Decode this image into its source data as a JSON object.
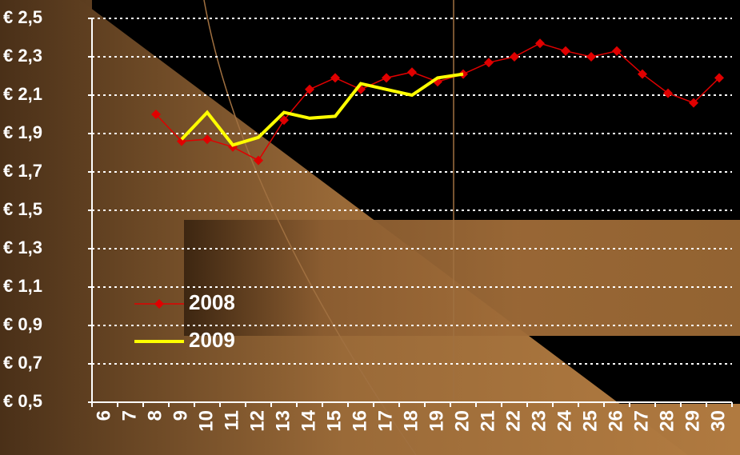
{
  "chart_data": {
    "type": "line",
    "categories": [
      "6",
      "7",
      "8",
      "9",
      "10",
      "11",
      "12",
      "13",
      "14",
      "15",
      "16",
      "17",
      "18",
      "19",
      "20",
      "21",
      "22",
      "23",
      "24",
      "25",
      "26",
      "27",
      "28",
      "29",
      "30"
    ],
    "series": [
      {
        "name": "2008",
        "color": "#e00000",
        "marker": "diamond",
        "values": [
          null,
          null,
          2.0,
          1.86,
          1.87,
          1.83,
          1.76,
          1.97,
          2.13,
          2.19,
          2.13,
          2.19,
          2.22,
          2.17,
          2.21,
          2.27,
          2.3,
          2.37,
          2.33,
          2.3,
          2.33,
          2.21,
          2.11,
          2.06,
          2.19
        ]
      },
      {
        "name": "2009",
        "color": "#ffff00",
        "values": [
          null,
          null,
          null,
          1.87,
          2.01,
          1.84,
          1.88,
          2.01,
          1.98,
          1.99,
          2.16,
          2.13,
          2.1,
          2.19,
          2.21,
          null,
          null,
          null,
          null,
          null,
          null,
          null,
          null,
          null,
          null
        ]
      }
    ],
    "ylim": [
      0.5,
      2.5
    ],
    "yticks": [
      {
        "value": 0.5,
        "label": "€ 0,5"
      },
      {
        "value": 0.7,
        "label": "€ 0,7"
      },
      {
        "value": 0.9,
        "label": "€ 0,9"
      },
      {
        "value": 1.1,
        "label": "€ 1,1"
      },
      {
        "value": 1.3,
        "label": "€ 1,3"
      },
      {
        "value": 1.5,
        "label": "€ 1,5"
      },
      {
        "value": 1.7,
        "label": "€ 1,7"
      },
      {
        "value": 1.9,
        "label": "€ 1,9"
      },
      {
        "value": 2.1,
        "label": "€ 2,1"
      },
      {
        "value": 2.3,
        "label": "€ 2,3"
      },
      {
        "value": 2.5,
        "label": "€ 2,5"
      }
    ],
    "grid": true,
    "legend": "left"
  }
}
